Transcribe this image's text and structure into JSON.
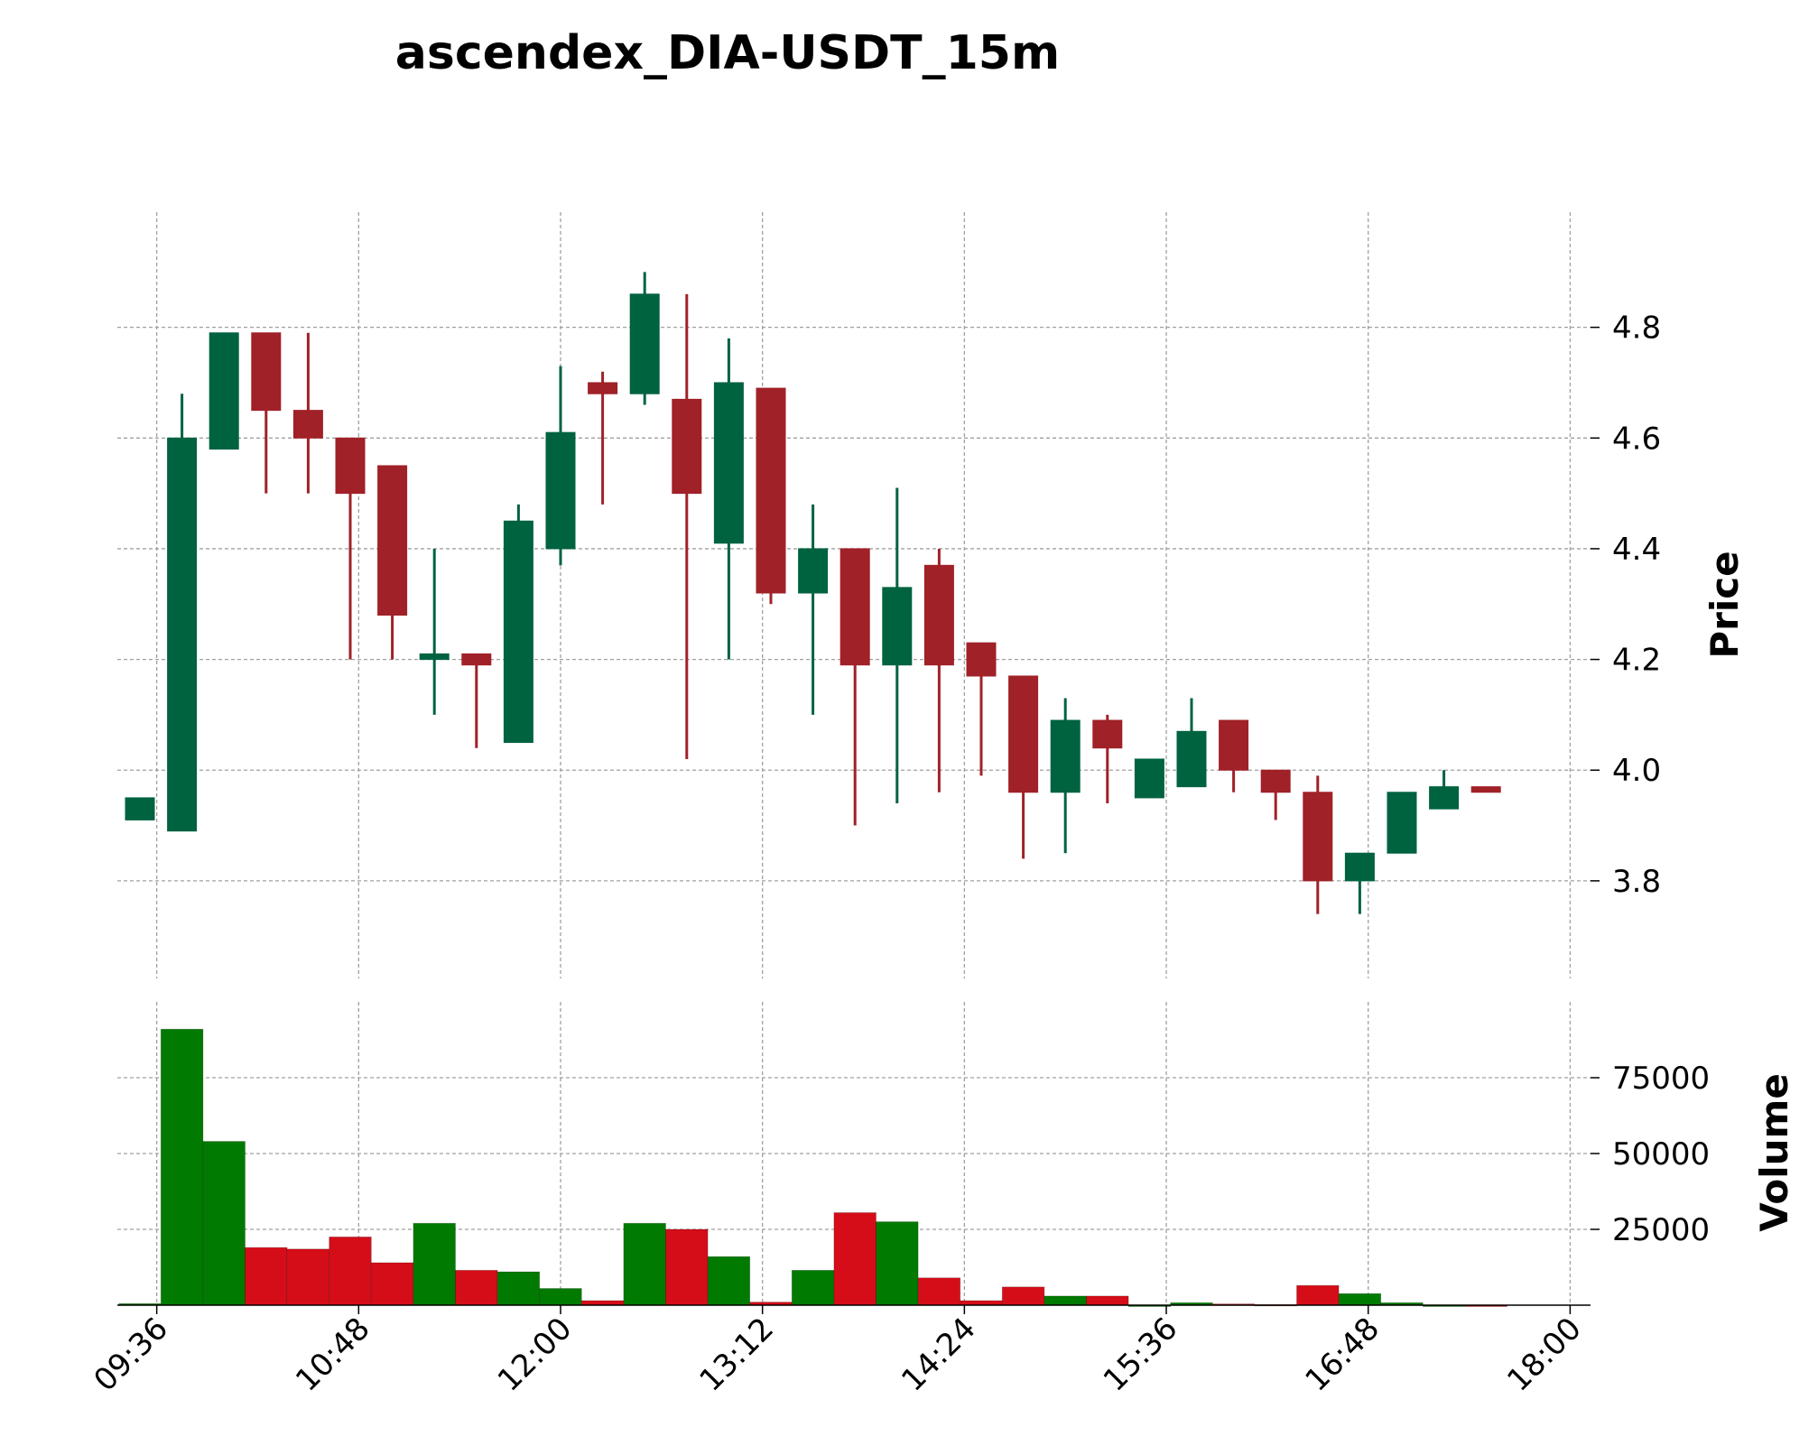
{
  "chart_data": {
    "type": "candlestick",
    "title": "ascendex_DIA-USDT_15m",
    "price_axis": {
      "label": "Price",
      "ylim": [
        3.64,
        5.0
      ],
      "ticks": [
        "3.8",
        "4.0",
        "4.2",
        "4.4",
        "4.6",
        "4.8"
      ]
    },
    "volume_axis": {
      "label": "Volume",
      "ylim": [
        0,
        100000
      ],
      "ticks": [
        "25000",
        "50000",
        "75000"
      ]
    },
    "x_axis": {
      "tick_labels": [
        "09:36",
        "10:48",
        "12:00",
        "13:12",
        "14:24",
        "15:36",
        "16:48",
        "18:00"
      ]
    },
    "grid": true,
    "colors": {
      "up_candle": "#006340",
      "down_candle": "#a02128",
      "up_volume": "#007a00",
      "down_volume": "#d50d18"
    },
    "candles": [
      {
        "time": "09:30",
        "open": 3.91,
        "high": 3.95,
        "low": 3.91,
        "close": 3.95,
        "volume": 500
      },
      {
        "time": "09:45",
        "open": 3.89,
        "high": 4.68,
        "low": 3.89,
        "close": 4.6,
        "volume": 91000
      },
      {
        "time": "10:00",
        "open": 4.58,
        "high": 4.79,
        "low": 4.58,
        "close": 4.79,
        "volume": 54000
      },
      {
        "time": "10:15",
        "open": 4.79,
        "high": 4.79,
        "low": 4.5,
        "close": 4.65,
        "volume": 19000
      },
      {
        "time": "10:30",
        "open": 4.65,
        "high": 4.79,
        "low": 4.5,
        "close": 4.6,
        "volume": 18500
      },
      {
        "time": "10:45",
        "open": 4.6,
        "high": 4.6,
        "low": 4.2,
        "close": 4.5,
        "volume": 22500
      },
      {
        "time": "11:00",
        "open": 4.55,
        "high": 4.55,
        "low": 4.2,
        "close": 4.28,
        "volume": 14000
      },
      {
        "time": "11:15",
        "open": 4.2,
        "high": 4.4,
        "low": 4.1,
        "close": 4.21,
        "volume": 27000
      },
      {
        "time": "11:30",
        "open": 4.21,
        "high": 4.21,
        "low": 4.04,
        "close": 4.19,
        "volume": 11500
      },
      {
        "time": "11:45",
        "open": 4.05,
        "high": 4.48,
        "low": 4.05,
        "close": 4.45,
        "volume": 11000
      },
      {
        "time": "12:00",
        "open": 4.4,
        "high": 4.73,
        "low": 4.37,
        "close": 4.61,
        "volume": 5500
      },
      {
        "time": "12:15",
        "open": 4.7,
        "high": 4.72,
        "low": 4.48,
        "close": 4.68,
        "volume": 1500
      },
      {
        "time": "12:30",
        "open": 4.68,
        "high": 4.9,
        "low": 4.66,
        "close": 4.86,
        "volume": 27000
      },
      {
        "time": "12:45",
        "open": 4.67,
        "high": 4.86,
        "low": 4.02,
        "close": 4.5,
        "volume": 25000
      },
      {
        "time": "13:00",
        "open": 4.41,
        "high": 4.78,
        "low": 4.2,
        "close": 4.7,
        "volume": 16000
      },
      {
        "time": "13:15",
        "open": 4.69,
        "high": 4.69,
        "low": 4.3,
        "close": 4.32,
        "volume": 1000
      },
      {
        "time": "13:30",
        "open": 4.32,
        "high": 4.48,
        "low": 4.1,
        "close": 4.4,
        "volume": 11500
      },
      {
        "time": "13:45",
        "open": 4.4,
        "high": 4.4,
        "low": 3.9,
        "close": 4.19,
        "volume": 30500
      },
      {
        "time": "14:00",
        "open": 4.19,
        "high": 4.51,
        "low": 3.94,
        "close": 4.33,
        "volume": 27500
      },
      {
        "time": "14:15",
        "open": 4.37,
        "high": 4.4,
        "low": 3.96,
        "close": 4.19,
        "volume": 9000
      },
      {
        "time": "14:30",
        "open": 4.23,
        "high": 4.23,
        "low": 3.99,
        "close": 4.17,
        "volume": 1500
      },
      {
        "time": "14:45",
        "open": 4.17,
        "high": 4.17,
        "low": 3.84,
        "close": 3.96,
        "volume": 6000
      },
      {
        "time": "15:00",
        "open": 3.96,
        "high": 4.13,
        "low": 3.85,
        "close": 4.09,
        "volume": 3000
      },
      {
        "time": "15:15",
        "open": 4.09,
        "high": 4.1,
        "low": 3.94,
        "close": 4.04,
        "volume": 3000
      },
      {
        "time": "15:30",
        "open": 3.95,
        "high": 4.02,
        "low": 3.95,
        "close": 4.02,
        "volume": 0
      },
      {
        "time": "15:45",
        "open": 3.97,
        "high": 4.13,
        "low": 3.97,
        "close": 4.07,
        "volume": 800
      },
      {
        "time": "16:00",
        "open": 4.09,
        "high": 4.09,
        "low": 3.96,
        "close": 4.0,
        "volume": 400
      },
      {
        "time": "16:15",
        "open": 4.0,
        "high": 4.0,
        "low": 3.91,
        "close": 3.96,
        "volume": 200
      },
      {
        "time": "16:30",
        "open": 3.96,
        "high": 3.99,
        "low": 3.74,
        "close": 3.8,
        "volume": 6500
      },
      {
        "time": "16:45",
        "open": 3.8,
        "high": 3.85,
        "low": 3.74,
        "close": 3.85,
        "volume": 3800
      },
      {
        "time": "17:00",
        "open": 3.85,
        "high": 3.96,
        "low": 3.85,
        "close": 3.96,
        "volume": 800
      },
      {
        "time": "17:15",
        "open": 3.93,
        "high": 4.0,
        "low": 3.93,
        "close": 3.97,
        "volume": 0
      },
      {
        "time": "17:30",
        "open": 3.97,
        "high": 3.97,
        "low": 3.96,
        "close": 3.96,
        "volume": 0
      }
    ]
  }
}
